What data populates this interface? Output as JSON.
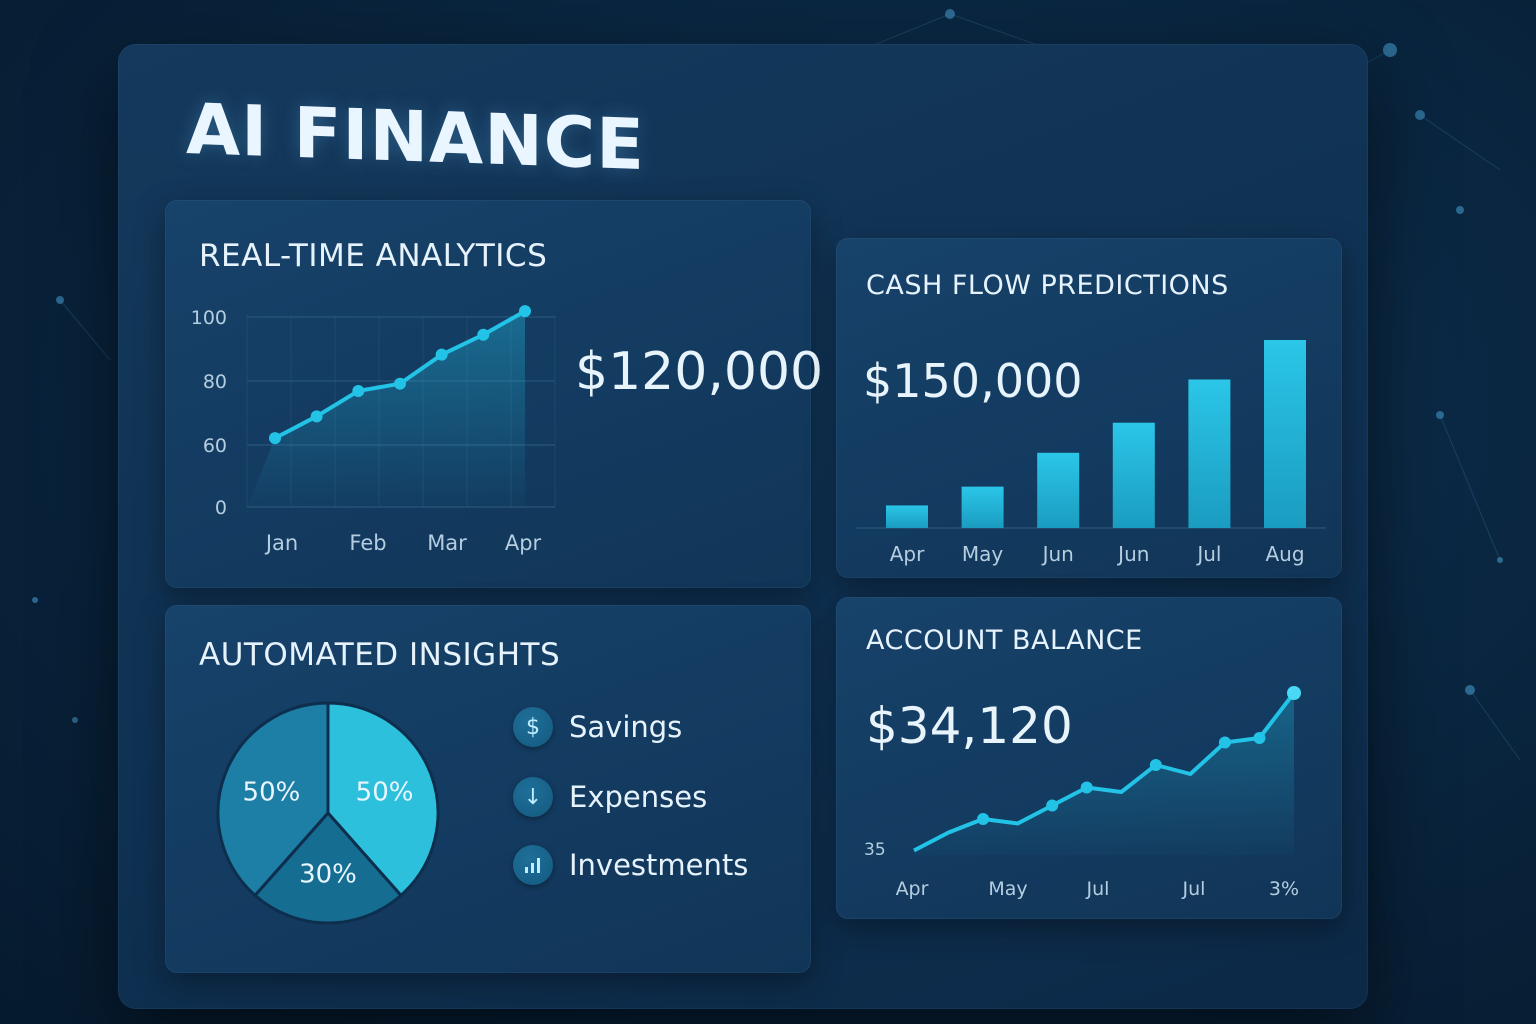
{
  "app": {
    "title": "AI FINANCE"
  },
  "panels": {
    "analytics": {
      "title": "REAL-TIME ANALYTICS",
      "value": "$120,000"
    },
    "cashflow": {
      "title": "CASH FLOW PREDICTIONS",
      "value": "$150,000"
    },
    "insights": {
      "title": "AUTOMATED INSIGHTS",
      "legend": [
        {
          "label": "Savings",
          "icon": "dollar-icon"
        },
        {
          "label": "Expenses",
          "icon": "arrow-down-icon"
        },
        {
          "label": "Investments",
          "icon": "bar-chart-icon"
        }
      ]
    },
    "balance": {
      "title": "ACCOUNT BALANCE",
      "value": "$34,120"
    }
  },
  "colors": {
    "accent": "#22c3e6",
    "accent_dark": "#1a9cc0",
    "panel": "#14395c",
    "background": "#0a2742"
  },
  "chart_data": [
    {
      "type": "line",
      "title": "REAL-TIME ANALYTICS",
      "x": [
        "Jan",
        "",
        "Feb",
        "",
        "Mar",
        "",
        "Apr"
      ],
      "tick_labels_x": [
        "Jan",
        "Feb",
        "Mar",
        "Apr"
      ],
      "y_ticks": [
        "0",
        "60",
        "80",
        "100"
      ],
      "values": [
        38,
        50,
        64,
        68,
        84,
        95,
        108
      ],
      "ylim": [
        0,
        108
      ],
      "grid": true,
      "area_fill": true
    },
    {
      "type": "bar",
      "title": "CASH FLOW PREDICTIONS",
      "categories": [
        "Apr",
        "May",
        "Jun",
        "Jun",
        "Jul",
        "Aug"
      ],
      "values": [
        12,
        22,
        40,
        56,
        79,
        100
      ],
      "ylim": [
        0,
        100
      ]
    },
    {
      "type": "pie",
      "title": "AUTOMATED INSIGHTS",
      "labels": [
        "50%",
        "50%",
        "30%"
      ],
      "values": [
        50,
        50,
        30
      ],
      "colors": [
        "#1d7fa6",
        "#2cc0dd",
        "#166d92"
      ]
    },
    {
      "type": "area",
      "title": "ACCOUNT BALANCE",
      "x_ticks": [
        "Apr",
        "May",
        "Jul",
        "Jul",
        "3%"
      ],
      "y_ticks": [
        "35"
      ],
      "values": [
        2,
        10,
        16,
        14,
        22,
        30,
        28,
        40,
        36,
        50,
        52,
        72
      ],
      "ylim": [
        0,
        72
      ]
    }
  ]
}
